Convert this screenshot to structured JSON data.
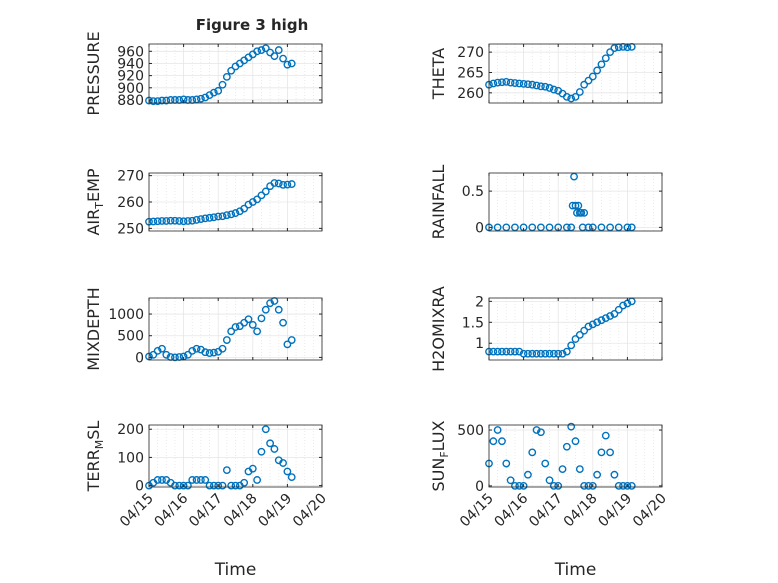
{
  "title": "Figure 3 high",
  "chart_data": [
    {
      "type": "scatter",
      "ylabel": "PRESSURE",
      "ylabel_parts": [
        {
          "t": "PRESSURE",
          "sub": false
        }
      ],
      "xlabel": "",
      "xlim": [
        "04/15",
        "04/20"
      ],
      "ylim": [
        875,
        972
      ],
      "yticks": [
        880,
        900,
        920,
        940,
        960
      ],
      "xticks": [
        "04/15",
        "04/16",
        "04/17",
        "04/18",
        "04/19",
        "04/20"
      ],
      "x": [
        "04/15 00:00",
        "04/15 03:00",
        "04/15 06:00",
        "04/15 09:00",
        "04/15 12:00",
        "04/15 15:00",
        "04/15 18:00",
        "04/15 21:00",
        "04/16 00:00",
        "04/16 03:00",
        "04/16 06:00",
        "04/16 09:00",
        "04/16 12:00",
        "04/16 15:00",
        "04/16 18:00",
        "04/16 21:00",
        "04/17 00:00",
        "04/17 03:00",
        "04/17 06:00",
        "04/17 09:00",
        "04/17 12:00",
        "04/17 15:00",
        "04/17 18:00",
        "04/17 21:00",
        "04/18 00:00",
        "04/18 03:00",
        "04/18 06:00",
        "04/18 09:00",
        "04/18 12:00",
        "04/18 15:00",
        "04/18 18:00",
        "04/18 21:00",
        "04/19 00:00",
        "04/19 03:00"
      ],
      "values": [
        879,
        878,
        878,
        879,
        879,
        880,
        880,
        880,
        881,
        880,
        880,
        881,
        882,
        884,
        888,
        892,
        895,
        905,
        918,
        928,
        935,
        940,
        945,
        950,
        955,
        960,
        962,
        965,
        958,
        952,
        962,
        948,
        938,
        940
      ]
    },
    {
      "type": "scatter",
      "ylabel": "THETA",
      "ylabel_parts": [
        {
          "t": "THETA",
          "sub": false
        }
      ],
      "xlabel": "",
      "xlim": [
        "04/15",
        "04/20"
      ],
      "ylim": [
        257.5,
        272
      ],
      "yticks": [
        260,
        265,
        270
      ],
      "xticks": [
        "04/15",
        "04/16",
        "04/17",
        "04/18",
        "04/19",
        "04/20"
      ],
      "x": [
        "04/15 00:00",
        "04/15 03:00",
        "04/15 06:00",
        "04/15 09:00",
        "04/15 12:00",
        "04/15 15:00",
        "04/15 18:00",
        "04/15 21:00",
        "04/16 00:00",
        "04/16 03:00",
        "04/16 06:00",
        "04/16 09:00",
        "04/16 12:00",
        "04/16 15:00",
        "04/16 18:00",
        "04/16 21:00",
        "04/17 00:00",
        "04/17 03:00",
        "04/17 06:00",
        "04/17 09:00",
        "04/17 12:00",
        "04/17 15:00",
        "04/17 18:00",
        "04/17 21:00",
        "04/18 00:00",
        "04/18 03:00",
        "04/18 06:00",
        "04/18 09:00",
        "04/18 12:00",
        "04/18 15:00",
        "04/18 18:00",
        "04/18 21:00",
        "04/19 00:00",
        "04/19 03:00"
      ],
      "values": [
        262,
        262.3,
        262.5,
        262.6,
        262.7,
        262.5,
        262.4,
        262.3,
        262.2,
        262.1,
        262,
        261.8,
        261.6,
        261.5,
        261.2,
        260.8,
        260.5,
        259.8,
        259,
        258.6,
        259,
        260.2,
        262,
        263,
        264,
        265.5,
        267,
        268.5,
        270,
        271,
        271.2,
        271.3,
        271.2,
        271.3
      ]
    },
    {
      "type": "scatter",
      "ylabel": "AIR_TEMP",
      "ylabel_parts": [
        {
          "t": "AIR",
          "sub": false
        },
        {
          "t": "T",
          "sub": true
        },
        {
          "t": "EMP",
          "sub": false
        }
      ],
      "xlabel": "",
      "xlim": [
        "04/15",
        "04/20"
      ],
      "ylim": [
        249,
        271
      ],
      "yticks": [
        250,
        260,
        270
      ],
      "xticks": [
        "04/15",
        "04/16",
        "04/17",
        "04/18",
        "04/19",
        "04/20"
      ],
      "x": [
        "04/15 00:00",
        "04/15 03:00",
        "04/15 06:00",
        "04/15 09:00",
        "04/15 12:00",
        "04/15 15:00",
        "04/15 18:00",
        "04/15 21:00",
        "04/16 00:00",
        "04/16 03:00",
        "04/16 06:00",
        "04/16 09:00",
        "04/16 12:00",
        "04/16 15:00",
        "04/16 18:00",
        "04/16 21:00",
        "04/17 00:00",
        "04/17 03:00",
        "04/17 06:00",
        "04/17 09:00",
        "04/17 12:00",
        "04/17 15:00",
        "04/17 18:00",
        "04/17 21:00",
        "04/18 00:00",
        "04/18 03:00",
        "04/18 06:00",
        "04/18 09:00",
        "04/18 12:00",
        "04/18 15:00",
        "04/18 18:00",
        "04/18 21:00",
        "04/19 00:00",
        "04/19 03:00"
      ],
      "values": [
        252.5,
        252.6,
        252.7,
        252.8,
        252.8,
        252.9,
        252.9,
        252.8,
        252.7,
        252.8,
        252.9,
        253.2,
        253.5,
        253.8,
        254,
        254.2,
        254.5,
        254.6,
        255,
        255.3,
        255.8,
        256.5,
        257.5,
        259,
        260,
        261,
        262.5,
        264,
        266,
        267.2,
        267,
        266.5,
        266.6,
        266.8
      ]
    },
    {
      "type": "scatter",
      "ylabel": "RAINFALL",
      "ylabel_parts": [
        {
          "t": "RAINFALL",
          "sub": false
        }
      ],
      "xlabel": "",
      "xlim": [
        "04/15",
        "04/20"
      ],
      "ylim": [
        -0.05,
        0.75
      ],
      "yticks": [
        0,
        0.5
      ],
      "xticks": [
        "04/15",
        "04/16",
        "04/17",
        "04/18",
        "04/19",
        "04/20"
      ],
      "x": [
        "04/15 00:00",
        "04/15 06:00",
        "04/15 12:00",
        "04/15 18:00",
        "04/16 00:00",
        "04/16 06:00",
        "04/16 12:00",
        "04/16 18:00",
        "04/17 00:00",
        "04/17 06:00",
        "04/17 09:00",
        "04/17 10:00",
        "04/17 11:00",
        "04/17 12:00",
        "04/17 13:00",
        "04/17 14:00",
        "04/17 15:00",
        "04/17 16:00",
        "04/17 17:00",
        "04/17 18:00",
        "04/17 21:00",
        "04/18 00:00",
        "04/18 06:00",
        "04/18 12:00",
        "04/18 18:00",
        "04/19 00:00",
        "04/19 03:00"
      ],
      "values": [
        0,
        0,
        0,
        0,
        0,
        0,
        0,
        0,
        0,
        0,
        0,
        0.3,
        0.7,
        0.3,
        0.2,
        0.3,
        0.2,
        0.2,
        0,
        0.2,
        0,
        0,
        0,
        0,
        0,
        0,
        0
      ]
    },
    {
      "type": "scatter",
      "ylabel": "MIXDEPTH",
      "ylabel_parts": [
        {
          "t": "MIXDEPTH",
          "sub": false
        }
      ],
      "xlabel": "",
      "xlim": [
        "04/15",
        "04/20"
      ],
      "ylim": [
        -60,
        1370
      ],
      "yticks": [
        0,
        500,
        1000
      ],
      "xticks": [
        "04/15",
        "04/16",
        "04/17",
        "04/18",
        "04/19",
        "04/20"
      ],
      "x": [
        "04/15 00:00",
        "04/15 03:00",
        "04/15 06:00",
        "04/15 09:00",
        "04/15 12:00",
        "04/15 15:00",
        "04/15 18:00",
        "04/15 21:00",
        "04/16 00:00",
        "04/16 03:00",
        "04/16 06:00",
        "04/16 09:00",
        "04/16 12:00",
        "04/16 15:00",
        "04/16 18:00",
        "04/16 21:00",
        "04/17 00:00",
        "04/17 03:00",
        "04/17 06:00",
        "04/17 09:00",
        "04/17 12:00",
        "04/17 15:00",
        "04/17 18:00",
        "04/17 21:00",
        "04/18 00:00",
        "04/18 03:00",
        "04/18 06:00",
        "04/18 09:00",
        "04/18 12:00",
        "04/18 15:00",
        "04/18 18:00",
        "04/18 21:00",
        "04/19 00:00",
        "04/19 03:00"
      ],
      "values": [
        20,
        60,
        150,
        200,
        60,
        10,
        0,
        10,
        20,
        60,
        150,
        200,
        180,
        120,
        100,
        110,
        130,
        200,
        400,
        600,
        700,
        720,
        800,
        880,
        750,
        600,
        900,
        1100,
        1250,
        1300,
        1100,
        800,
        300,
        400
      ]
    },
    {
      "type": "scatter",
      "ylabel": "H2OMIXRA",
      "ylabel_parts": [
        {
          "t": "H2OMIXRA",
          "sub": false
        }
      ],
      "xlabel": "",
      "xlim": [
        "04/15",
        "04/20"
      ],
      "ylim": [
        0.6,
        2.08
      ],
      "yticks": [
        1,
        1.5,
        2
      ],
      "xticks": [
        "04/15",
        "04/16",
        "04/17",
        "04/18",
        "04/19",
        "04/20"
      ],
      "x": [
        "04/15 00:00",
        "04/15 03:00",
        "04/15 06:00",
        "04/15 09:00",
        "04/15 12:00",
        "04/15 15:00",
        "04/15 18:00",
        "04/15 21:00",
        "04/16 00:00",
        "04/16 03:00",
        "04/16 06:00",
        "04/16 09:00",
        "04/16 12:00",
        "04/16 15:00",
        "04/16 18:00",
        "04/16 21:00",
        "04/17 00:00",
        "04/17 03:00",
        "04/17 06:00",
        "04/17 09:00",
        "04/17 12:00",
        "04/17 15:00",
        "04/17 18:00",
        "04/17 21:00",
        "04/18 00:00",
        "04/18 03:00",
        "04/18 06:00",
        "04/18 09:00",
        "04/18 12:00",
        "04/18 15:00",
        "04/18 18:00",
        "04/18 21:00",
        "04/19 00:00",
        "04/19 03:00"
      ],
      "values": [
        0.8,
        0.8,
        0.8,
        0.8,
        0.8,
        0.8,
        0.8,
        0.8,
        0.75,
        0.75,
        0.75,
        0.75,
        0.75,
        0.75,
        0.75,
        0.75,
        0.75,
        0.75,
        0.8,
        0.95,
        1.1,
        1.2,
        1.3,
        1.4,
        1.45,
        1.5,
        1.55,
        1.6,
        1.65,
        1.7,
        1.8,
        1.9,
        1.95,
        2
      ]
    },
    {
      "type": "scatter",
      "ylabel": "TERR_MSL",
      "ylabel_parts": [
        {
          "t": "TERR",
          "sub": false
        },
        {
          "t": "M",
          "sub": true
        },
        {
          "t": "SL",
          "sub": false
        }
      ],
      "xlabel": "Time",
      "xlim": [
        "04/15",
        "04/20"
      ],
      "ylim": [
        -5,
        215
      ],
      "yticks": [
        0,
        100,
        200
      ],
      "xticks": [
        "04/15",
        "04/16",
        "04/17",
        "04/18",
        "04/19",
        "04/20"
      ],
      "x": [
        "04/15 00:00",
        "04/15 03:00",
        "04/15 06:00",
        "04/15 09:00",
        "04/15 12:00",
        "04/15 15:00",
        "04/15 18:00",
        "04/15 21:00",
        "04/16 00:00",
        "04/16 03:00",
        "04/16 06:00",
        "04/16 09:00",
        "04/16 12:00",
        "04/16 15:00",
        "04/16 18:00",
        "04/16 21:00",
        "04/17 00:00",
        "04/17 03:00",
        "04/17 06:00",
        "04/17 09:00",
        "04/17 12:00",
        "04/17 15:00",
        "04/17 18:00",
        "04/17 21:00",
        "04/18 00:00",
        "04/18 03:00",
        "04/18 06:00",
        "04/18 09:00",
        "04/18 12:00",
        "04/18 15:00",
        "04/18 18:00",
        "04/18 21:00",
        "04/19 00:00",
        "04/19 03:00"
      ],
      "values": [
        0,
        10,
        20,
        20,
        20,
        10,
        0,
        0,
        0,
        0,
        20,
        20,
        20,
        20,
        0,
        0,
        0,
        0,
        55,
        0,
        0,
        0,
        10,
        50,
        60,
        20,
        120,
        200,
        150,
        130,
        90,
        80,
        50,
        30
      ]
    },
    {
      "type": "scatter",
      "ylabel": "SUN_FLUX",
      "ylabel_parts": [
        {
          "t": "SUN",
          "sub": false
        },
        {
          "t": "F",
          "sub": true
        },
        {
          "t": "LUX",
          "sub": false
        }
      ],
      "xlabel": "Time",
      "xlim": [
        "04/15",
        "04/20"
      ],
      "ylim": [
        -10,
        545
      ],
      "yticks": [
        0,
        500
      ],
      "xticks": [
        "04/15",
        "04/16",
        "04/17",
        "04/18",
        "04/19",
        "04/20"
      ],
      "x": [
        "04/15 00:00",
        "04/15 03:00",
        "04/15 06:00",
        "04/15 09:00",
        "04/15 12:00",
        "04/15 15:00",
        "04/15 18:00",
        "04/15 21:00",
        "04/16 00:00",
        "04/16 03:00",
        "04/16 06:00",
        "04/16 09:00",
        "04/16 12:00",
        "04/16 15:00",
        "04/16 18:00",
        "04/16 21:00",
        "04/17 00:00",
        "04/17 03:00",
        "04/17 06:00",
        "04/17 09:00",
        "04/17 12:00",
        "04/17 15:00",
        "04/17 18:00",
        "04/17 21:00",
        "04/18 00:00",
        "04/18 03:00",
        "04/18 06:00",
        "04/18 09:00",
        "04/18 12:00",
        "04/18 15:00",
        "04/18 18:00",
        "04/18 21:00",
        "04/19 00:00",
        "04/19 03:00"
      ],
      "values": [
        200,
        400,
        500,
        400,
        200,
        50,
        0,
        0,
        0,
        100,
        300,
        500,
        480,
        200,
        50,
        0,
        0,
        150,
        350,
        530,
        400,
        150,
        0,
        0,
        0,
        100,
        300,
        450,
        300,
        100,
        0,
        0,
        0,
        0
      ]
    }
  ],
  "colors": {
    "marker": "#0072BD",
    "grid": "#e6e6e6",
    "axis": "#262626",
    "background": "#ffffff"
  }
}
